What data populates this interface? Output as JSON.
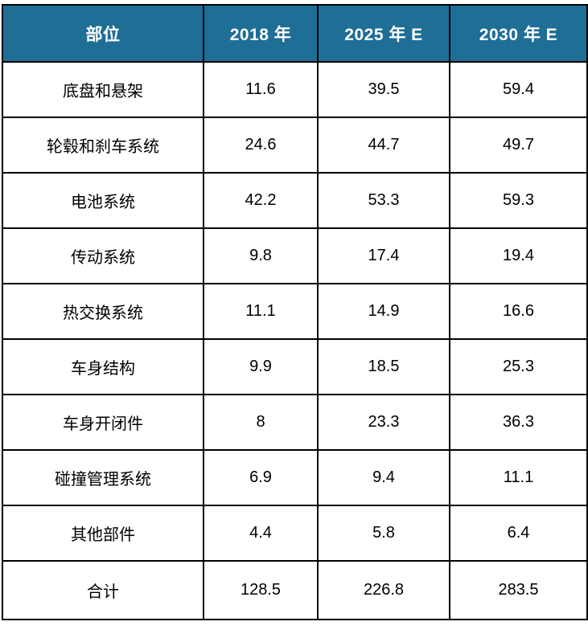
{
  "chart_data": {
    "type": "table",
    "title": "",
    "columns": [
      "部位",
      "2018 年",
      "2025 年 E",
      "2030 年 E"
    ],
    "rows": [
      [
        "底盘和悬架",
        "11.6",
        "39.5",
        "59.4"
      ],
      [
        "轮毂和刹车系统",
        "24.6",
        "44.7",
        "49.7"
      ],
      [
        "电池系统",
        "42.2",
        "53.3",
        "59.3"
      ],
      [
        "传动系统",
        "9.8",
        "17.4",
        "19.4"
      ],
      [
        "热交换系统",
        "11.1",
        "14.9",
        "16.6"
      ],
      [
        "车身结构",
        "9.9",
        "18.5",
        "25.3"
      ],
      [
        "车身开闭件",
        "8",
        "23.3",
        "36.3"
      ],
      [
        "碰撞管理系统",
        "6.9",
        "9.4",
        "11.1"
      ],
      [
        "其他部件",
        "4.4",
        "5.8",
        "6.4"
      ],
      [
        "合计",
        "128.5",
        "226.8",
        "283.5"
      ]
    ]
  },
  "colors": {
    "header_bg": "#1F6E96",
    "header_text": "#FFFFFF",
    "body_text": "#000000",
    "border": "#000000",
    "page_bg": "#FFFFFF"
  }
}
